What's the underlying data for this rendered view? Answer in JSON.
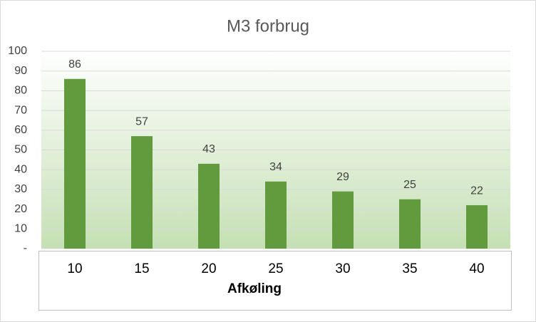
{
  "chart_data": {
    "type": "bar",
    "title": "M3 forbrug",
    "x_label": "Afkøling",
    "categories": [
      "10",
      "15",
      "20",
      "25",
      "30",
      "35",
      "40"
    ],
    "values": [
      86,
      57,
      43,
      34,
      29,
      25,
      22
    ],
    "color": "#629b3d",
    "ylim": [
      0,
      100
    ],
    "yticks": [
      {
        "value": 0,
        "label": "-"
      },
      10,
      20,
      30,
      40,
      50,
      60,
      70,
      80,
      90,
      100
    ],
    "grid": true
  }
}
